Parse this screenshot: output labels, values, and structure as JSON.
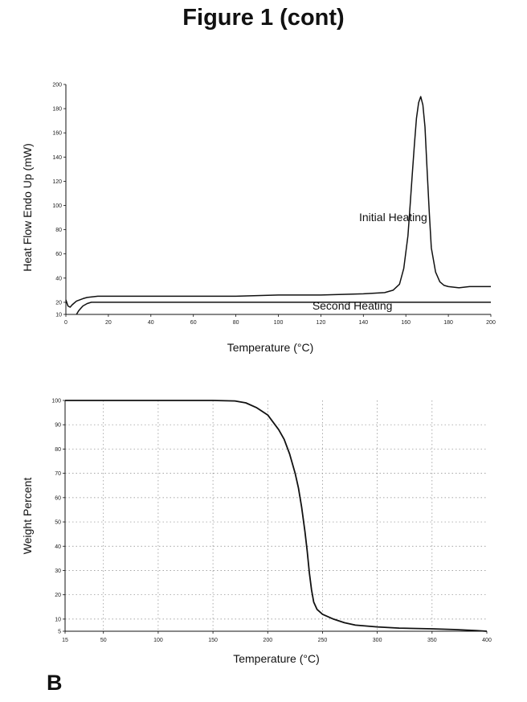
{
  "figure": {
    "title": "Figure 1 (cont)",
    "panel_letter": "B"
  },
  "chart_data": [
    {
      "type": "line",
      "xlabel": "Temperature (°C)",
      "ylabel": "Heat Flow Endo Up (mW)",
      "xlim": [
        0,
        200
      ],
      "ylim": [
        10,
        200
      ],
      "x_ticks": [
        "0",
        "20",
        "40",
        "60",
        "80",
        "100",
        "120",
        "140",
        "160",
        "180",
        "200"
      ],
      "y_ticks": [
        "10",
        "20",
        "40",
        "60",
        "80",
        "100",
        "120",
        "140",
        "160",
        "180",
        "200"
      ],
      "grid": false,
      "annotations": [
        {
          "text": "Initial Heating",
          "x": 138,
          "y": 87
        },
        {
          "text": "Second Heating",
          "x": 116,
          "y": 14
        }
      ],
      "series": [
        {
          "name": "Initial Heating",
          "x": [
            0,
            1,
            2,
            3,
            5,
            8,
            10,
            15,
            20,
            40,
            60,
            80,
            100,
            120,
            140,
            150,
            154,
            157,
            159,
            161,
            162,
            163,
            164,
            165,
            166,
            167,
            168,
            169,
            170,
            171,
            172,
            174,
            176,
            178,
            180,
            185,
            190,
            195,
            200
          ],
          "y": [
            22,
            17,
            16,
            18,
            21,
            23,
            24,
            25,
            25,
            25,
            25,
            25,
            26,
            26,
            27,
            28,
            30,
            35,
            48,
            75,
            100,
            125,
            150,
            172,
            185,
            190,
            183,
            165,
            130,
            95,
            65,
            45,
            37,
            34,
            33,
            32,
            33,
            33,
            33
          ]
        },
        {
          "name": "Second Heating",
          "x": [
            5,
            6,
            7,
            8,
            10,
            12,
            15,
            20,
            40,
            60,
            80,
            100,
            120,
            140,
            160,
            180,
            200
          ],
          "y": [
            10,
            13,
            15,
            17,
            19,
            20,
            20,
            20,
            20,
            20,
            20,
            20,
            20,
            20,
            20,
            20,
            20
          ]
        }
      ]
    },
    {
      "type": "line",
      "xlabel": "Temperature (°C)",
      "ylabel": "Weight Percent",
      "xlim": [
        15,
        400
      ],
      "ylim": [
        5,
        100
      ],
      "x_ticks": [
        "15",
        "50",
        "100",
        "150",
        "200",
        "250",
        "300",
        "350",
        "400"
      ],
      "y_ticks": [
        "5",
        "10",
        "20",
        "30",
        "40",
        "50",
        "60",
        "70",
        "80",
        "90",
        "100"
      ],
      "grid": true,
      "series": [
        {
          "name": "",
          "x": [
            15,
            50,
            100,
            150,
            170,
            180,
            190,
            200,
            210,
            215,
            220,
            225,
            228,
            231,
            234,
            236,
            238,
            240,
            242,
            245,
            250,
            260,
            270,
            280,
            300,
            320,
            350,
            370,
            390,
            400
          ],
          "y": [
            100,
            100,
            100,
            100,
            99.8,
            99,
            97,
            94,
            88,
            84,
            78,
            70,
            64,
            56,
            46,
            38,
            29,
            22,
            17,
            14,
            12,
            10,
            8.5,
            7.5,
            6.8,
            6.3,
            6,
            5.7,
            5.3,
            5
          ]
        }
      ]
    }
  ]
}
